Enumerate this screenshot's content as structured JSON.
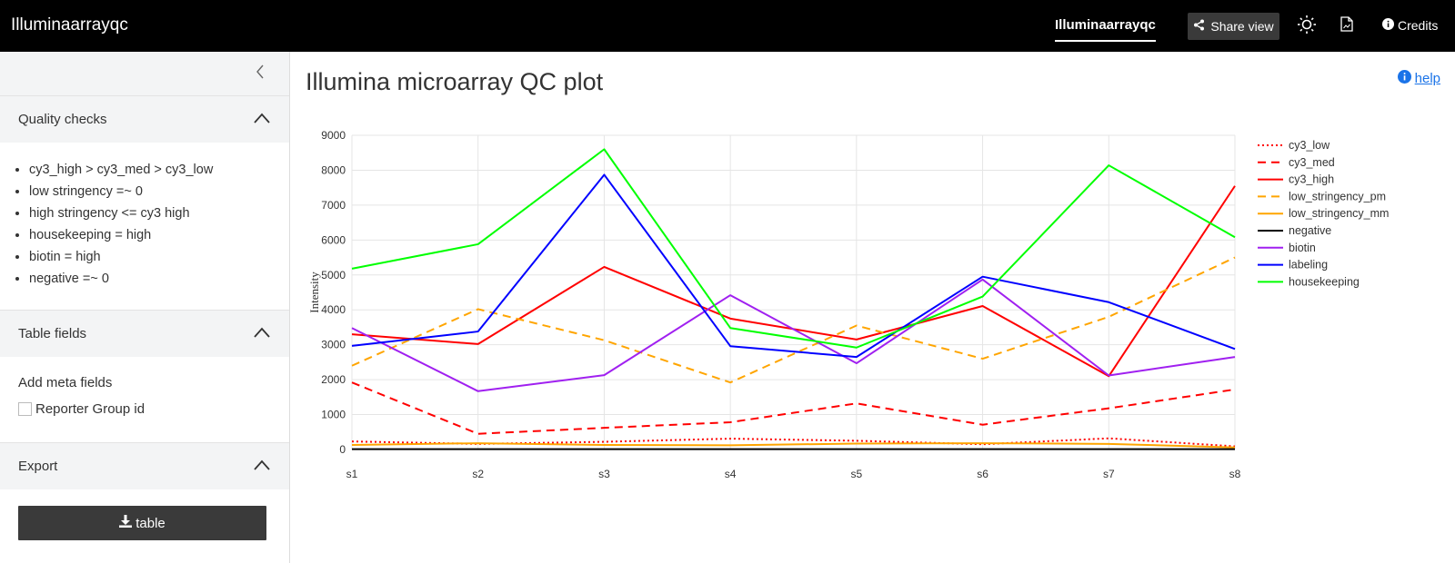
{
  "header": {
    "app_title": "Illuminaarrayqc",
    "nav_active": "Illuminaarrayqc",
    "share_label": "Share view",
    "credits_label": "Credits"
  },
  "sidebar": {
    "quality_checks": {
      "title": "Quality checks",
      "items": [
        "cy3_high > cy3_med > cy3_low",
        "low stringency =~ 0",
        "high stringency <= cy3 high",
        "housekeeping = high",
        "biotin = high",
        "negative =~ 0"
      ]
    },
    "table_fields": {
      "title": "Table fields",
      "add_meta_label": "Add meta fields",
      "checkbox_label": "Reporter Group id"
    },
    "export": {
      "title": "Export",
      "button_label": "table"
    }
  },
  "main": {
    "title": "Illumina microarray QC plot",
    "help_label": "help"
  },
  "chart_data": {
    "type": "line",
    "title": "",
    "xlabel": "",
    "ylabel": "Intensity",
    "categories": [
      "s1",
      "s2",
      "s3",
      "s4",
      "s5",
      "s6",
      "s7",
      "s8"
    ],
    "ylim": [
      0,
      9000
    ],
    "yticks": [
      0,
      1000,
      2000,
      3000,
      4000,
      5000,
      6000,
      7000,
      8000,
      9000
    ],
    "legend_position": "right",
    "series": [
      {
        "name": "cy3_low",
        "color": "#ff0000",
        "dash": "dot",
        "values": [
          230,
          160,
          220,
          310,
          250,
          150,
          320,
          90
        ]
      },
      {
        "name": "cy3_med",
        "color": "#ff0000",
        "dash": "dash",
        "values": [
          1920,
          450,
          620,
          780,
          1320,
          710,
          1180,
          1720
        ]
      },
      {
        "name": "cy3_high",
        "color": "#ff0000",
        "dash": "solid",
        "values": [
          3300,
          3020,
          5230,
          3750,
          3150,
          4110,
          2100,
          7550
        ]
      },
      {
        "name": "low_stringency_pm",
        "color": "#ffa500",
        "dash": "dash",
        "values": [
          2400,
          4020,
          3130,
          1920,
          3550,
          2600,
          3800,
          5500
        ]
      },
      {
        "name": "low_stringency_mm",
        "color": "#ffa500",
        "dash": "solid",
        "values": [
          130,
          180,
          130,
          120,
          170,
          180,
          160,
          60
        ]
      },
      {
        "name": "negative",
        "color": "#000000",
        "dash": "solid",
        "values": [
          10,
          10,
          10,
          10,
          10,
          10,
          10,
          10
        ]
      },
      {
        "name": "biotin",
        "color": "#a020f0",
        "dash": "solid",
        "values": [
          3480,
          1670,
          2130,
          4420,
          2470,
          4870,
          2120,
          2650
        ]
      },
      {
        "name": "labeling",
        "color": "#0000ff",
        "dash": "solid",
        "values": [
          2970,
          3380,
          7870,
          2960,
          2650,
          4950,
          4220,
          2880
        ]
      },
      {
        "name": "housekeeping",
        "color": "#00ff00",
        "dash": "solid",
        "values": [
          5180,
          5880,
          8600,
          3480,
          2920,
          4380,
          8140,
          6080
        ]
      }
    ]
  }
}
